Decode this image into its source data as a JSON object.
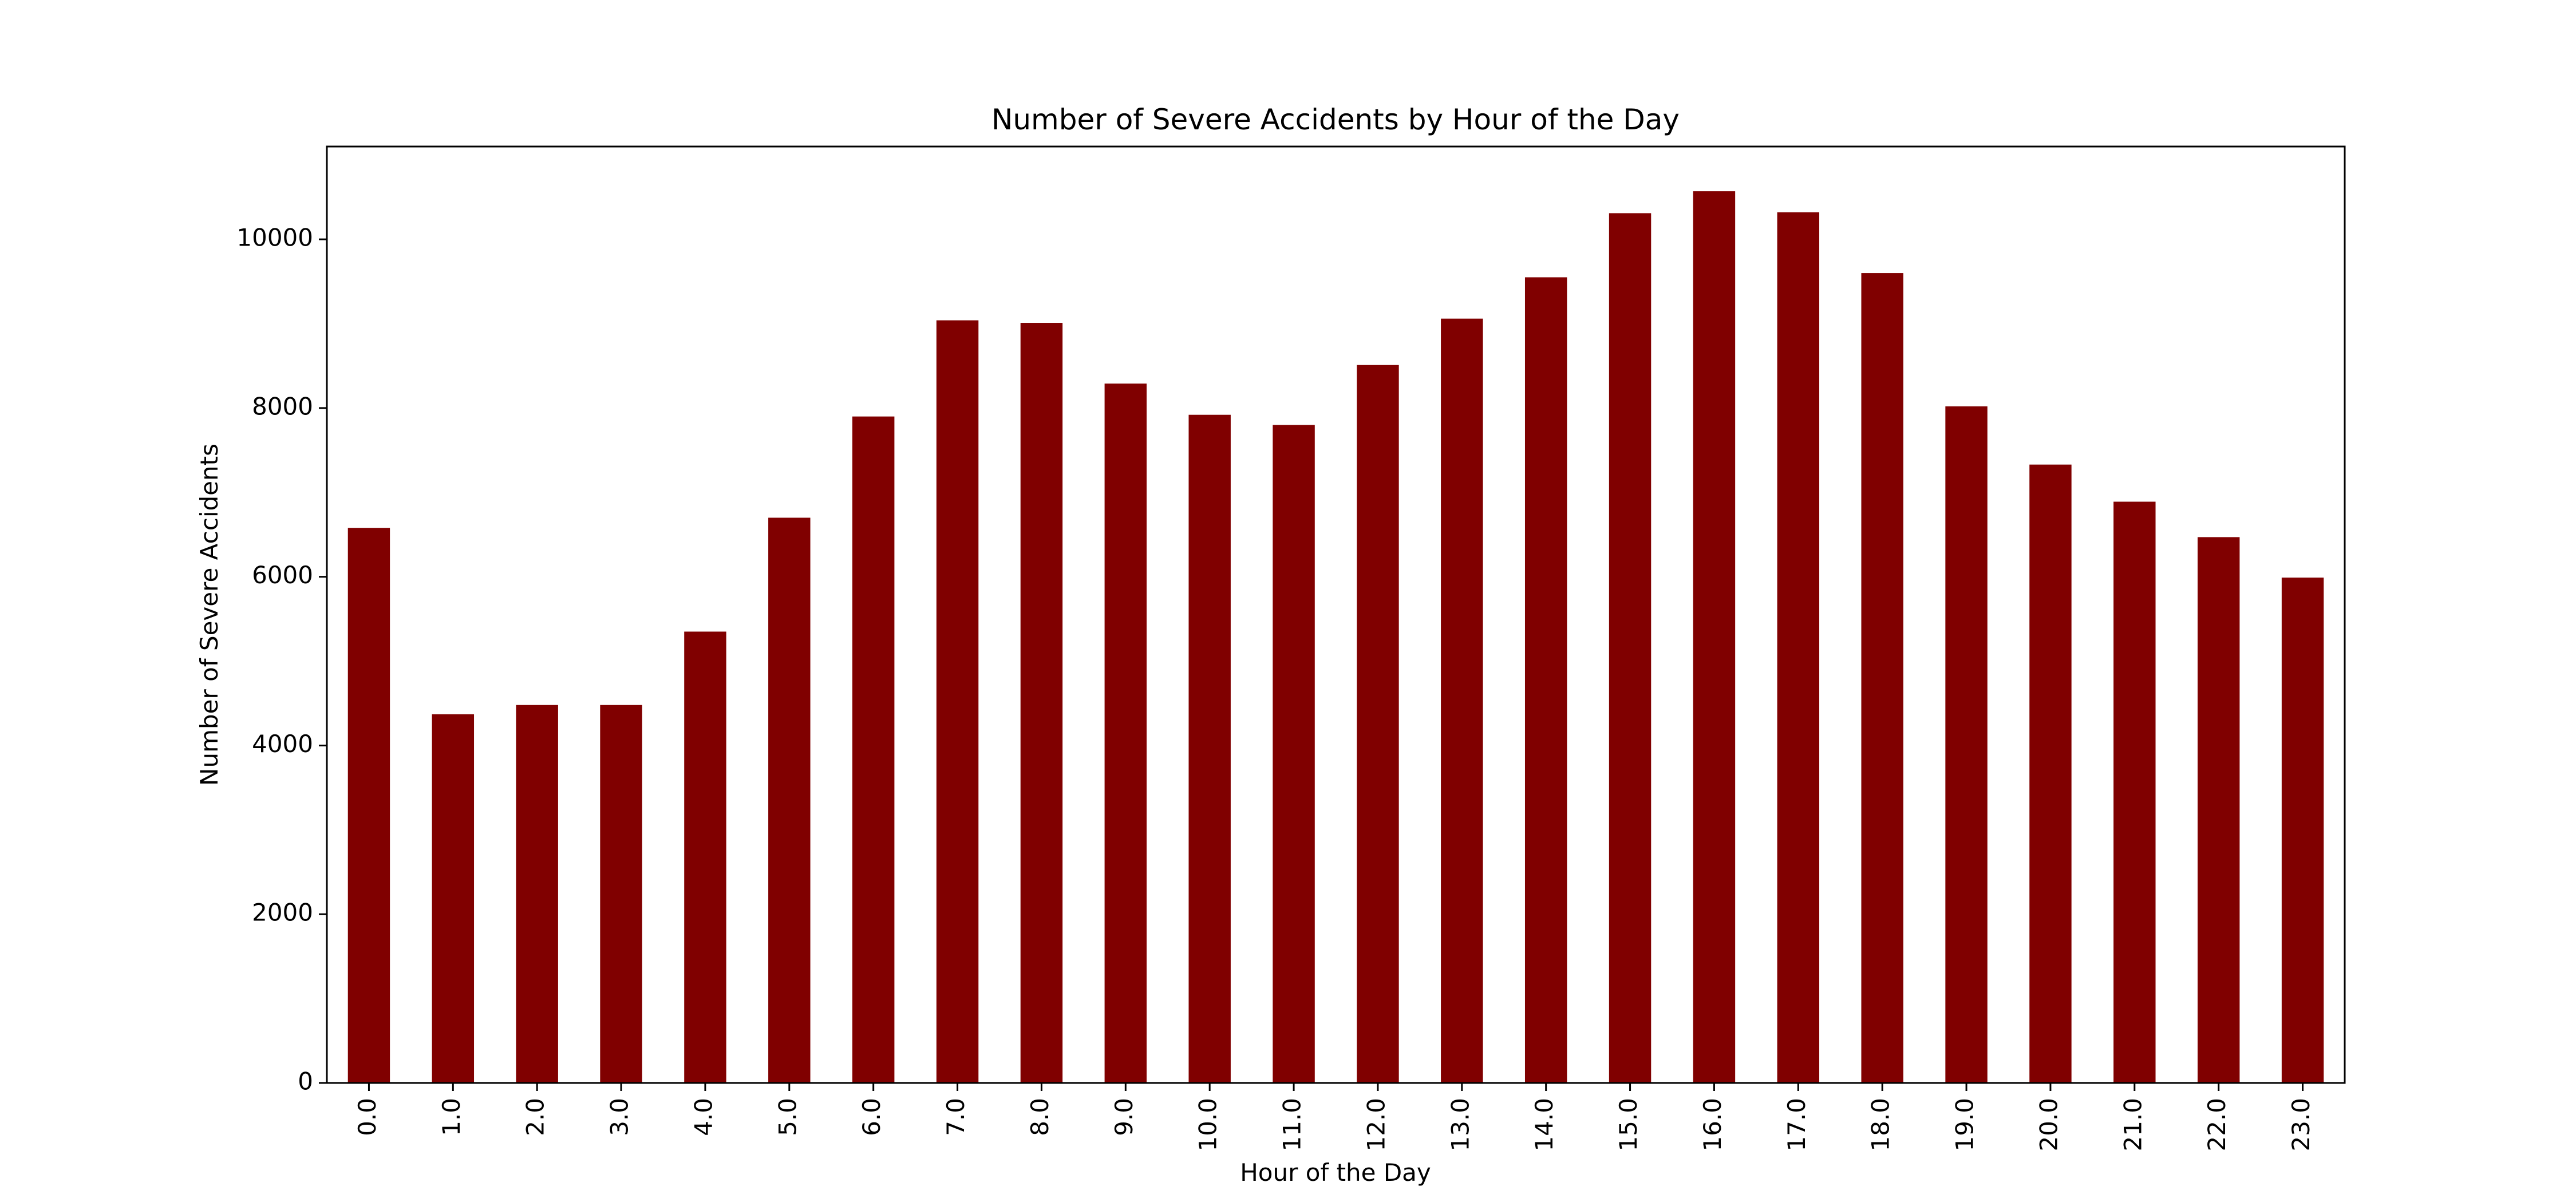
{
  "chart_data": {
    "type": "bar",
    "title": "Number of Severe Accidents by Hour of the Day",
    "xlabel": "Hour of the Day",
    "ylabel": "Number of Severe Accidents",
    "categories": [
      "0.0",
      "1.0",
      "2.0",
      "3.0",
      "4.0",
      "5.0",
      "6.0",
      "7.0",
      "8.0",
      "9.0",
      "10.0",
      "11.0",
      "12.0",
      "13.0",
      "14.0",
      "15.0",
      "16.0",
      "17.0",
      "18.0",
      "19.0",
      "20.0",
      "21.0",
      "22.0",
      "23.0"
    ],
    "values": [
      6580,
      4370,
      4480,
      4480,
      5350,
      6700,
      7900,
      9040,
      9010,
      8290,
      7920,
      7800,
      8510,
      9060,
      9550,
      10310,
      10570,
      10320,
      9600,
      8020,
      7330,
      6890,
      6470,
      5990
    ],
    "ylim": [
      0,
      11100
    ],
    "yticks": [
      0,
      2000,
      4000,
      6000,
      8000,
      10000
    ],
    "bar_color": "#800000",
    "grid": false,
    "legend": "none"
  }
}
